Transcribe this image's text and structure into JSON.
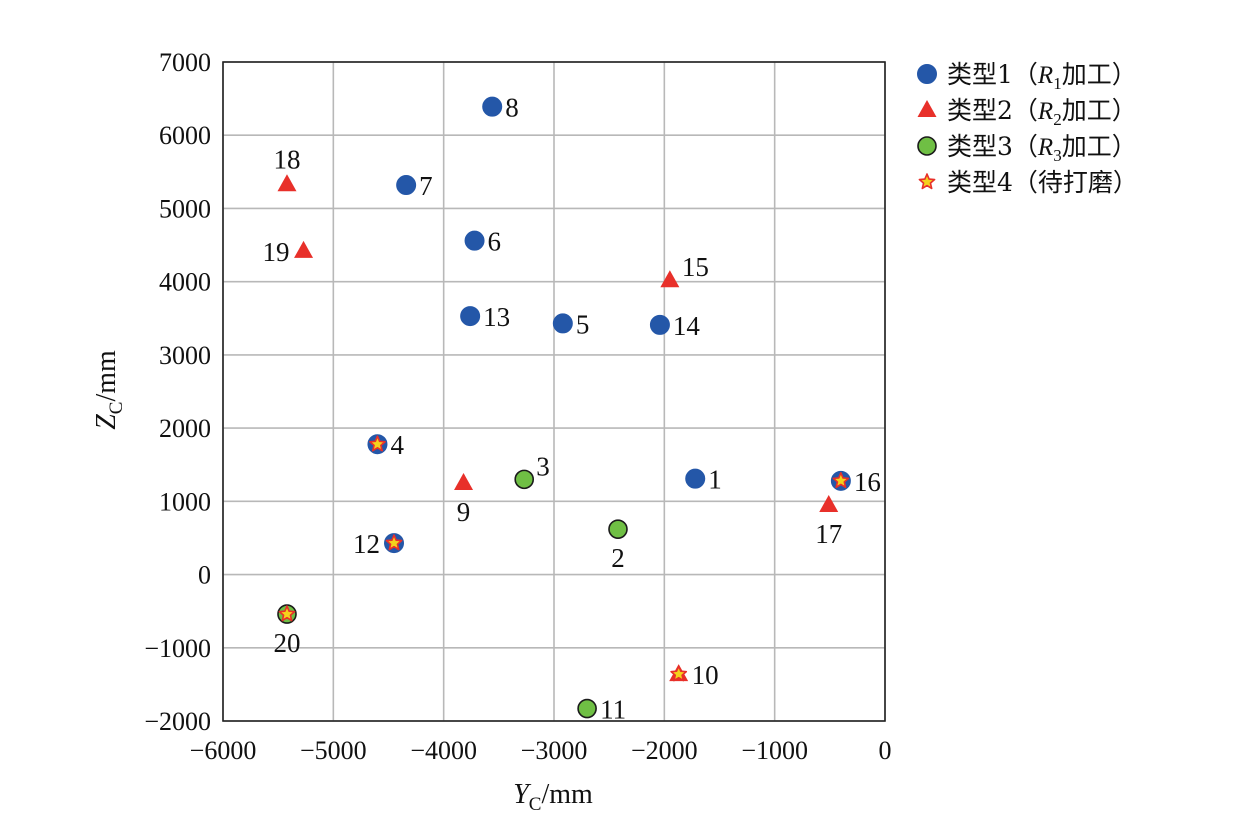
{
  "chart_data": {
    "type": "scatter",
    "xlabel": {
      "main": "Y",
      "sub": "C",
      "unit": "/mm"
    },
    "ylabel": {
      "main": "Z",
      "sub": "C",
      "unit": "/mm"
    },
    "xlim": [
      -6000,
      0
    ],
    "ylim": [
      -2000,
      7000
    ],
    "x_ticks": [
      -6000,
      -5000,
      -4000,
      -3000,
      -2000,
      -1000,
      0
    ],
    "y_ticks": [
      -2000,
      -1000,
      0,
      1000,
      2000,
      3000,
      4000,
      5000,
      6000,
      7000
    ],
    "x_tick_labels": [
      "−6000",
      "−5000",
      "−4000",
      "−3000",
      "−2000",
      "−1000",
      "0"
    ],
    "y_tick_labels": [
      "−2000",
      "−1000",
      "0",
      "1000",
      "2000",
      "3000",
      "4000",
      "5000",
      "6000",
      "7000"
    ],
    "grid": true,
    "legend_position": "outside-right",
    "colors": {
      "type1": "#2457a8",
      "type2": "#e8302a",
      "type3": "#6fbf44",
      "type4_star": "#f4d21c",
      "type4_star_edge": "#e8302a",
      "grid": "#b8b8b8"
    },
    "legend": [
      {
        "key": "type1",
        "marker": "circle-blue",
        "prefix": "类型1（",
        "italic": "R",
        "sub": "1",
        "suffix": "加工）"
      },
      {
        "key": "type2",
        "marker": "triangle-red",
        "prefix": "类型2（",
        "italic": "R",
        "sub": "2",
        "suffix": "加工）"
      },
      {
        "key": "type3",
        "marker": "circle-green",
        "prefix": "类型3（",
        "italic": "R",
        "sub": "3",
        "suffix": "加工）"
      },
      {
        "key": "type4",
        "marker": "star-yellow",
        "text": "类型4（待打磨）"
      }
    ],
    "series": [
      {
        "name": "类型1（R1加工）",
        "marker": "circle-blue",
        "points": [
          {
            "label": "1",
            "x": -1720,
            "y": 1310,
            "star": false,
            "label_pos": "right"
          },
          {
            "label": "4",
            "x": -4600,
            "y": 1780,
            "star": true,
            "label_pos": "right"
          },
          {
            "label": "5",
            "x": -2920,
            "y": 3430,
            "star": false,
            "label_pos": "right"
          },
          {
            "label": "6",
            "x": -3720,
            "y": 4560,
            "star": false,
            "label_pos": "right"
          },
          {
            "label": "7",
            "x": -4340,
            "y": 5320,
            "star": false,
            "label_pos": "right"
          },
          {
            "label": "8",
            "x": -3560,
            "y": 6390,
            "star": false,
            "label_pos": "right"
          },
          {
            "label": "12",
            "x": -4450,
            "y": 430,
            "star": true,
            "label_pos": "left"
          },
          {
            "label": "13",
            "x": -3760,
            "y": 3530,
            "star": false,
            "label_pos": "right"
          },
          {
            "label": "14",
            "x": -2040,
            "y": 3410,
            "star": false,
            "label_pos": "right"
          },
          {
            "label": "16",
            "x": -400,
            "y": 1280,
            "star": true,
            "label_pos": "right"
          }
        ]
      },
      {
        "name": "类型2（R2加工）",
        "marker": "triangle-red",
        "points": [
          {
            "label": "9",
            "x": -3820,
            "y": 1250,
            "star": false,
            "label_pos": "below"
          },
          {
            "label": "10",
            "x": -1870,
            "y": -1360,
            "star": true,
            "label_pos": "right"
          },
          {
            "label": "15",
            "x": -1950,
            "y": 4020,
            "star": false,
            "label_pos": "above-right"
          },
          {
            "label": "17",
            "x": -510,
            "y": 950,
            "star": false,
            "label_pos": "below"
          },
          {
            "label": "18",
            "x": -5420,
            "y": 5330,
            "star": false,
            "label_pos": "above"
          },
          {
            "label": "19",
            "x": -5270,
            "y": 4420,
            "star": false,
            "label_pos": "left"
          }
        ]
      },
      {
        "name": "类型3（R3加工）",
        "marker": "circle-green",
        "points": [
          {
            "label": "2",
            "x": -2420,
            "y": 620,
            "star": false,
            "label_pos": "below"
          },
          {
            "label": "3",
            "x": -3270,
            "y": 1300,
            "star": false,
            "label_pos": "above-right"
          },
          {
            "label": "11",
            "x": -2700,
            "y": -1830,
            "star": false,
            "label_pos": "right"
          },
          {
            "label": "20",
            "x": -5420,
            "y": -540,
            "star": true,
            "label_pos": "below"
          }
        ]
      }
    ]
  }
}
